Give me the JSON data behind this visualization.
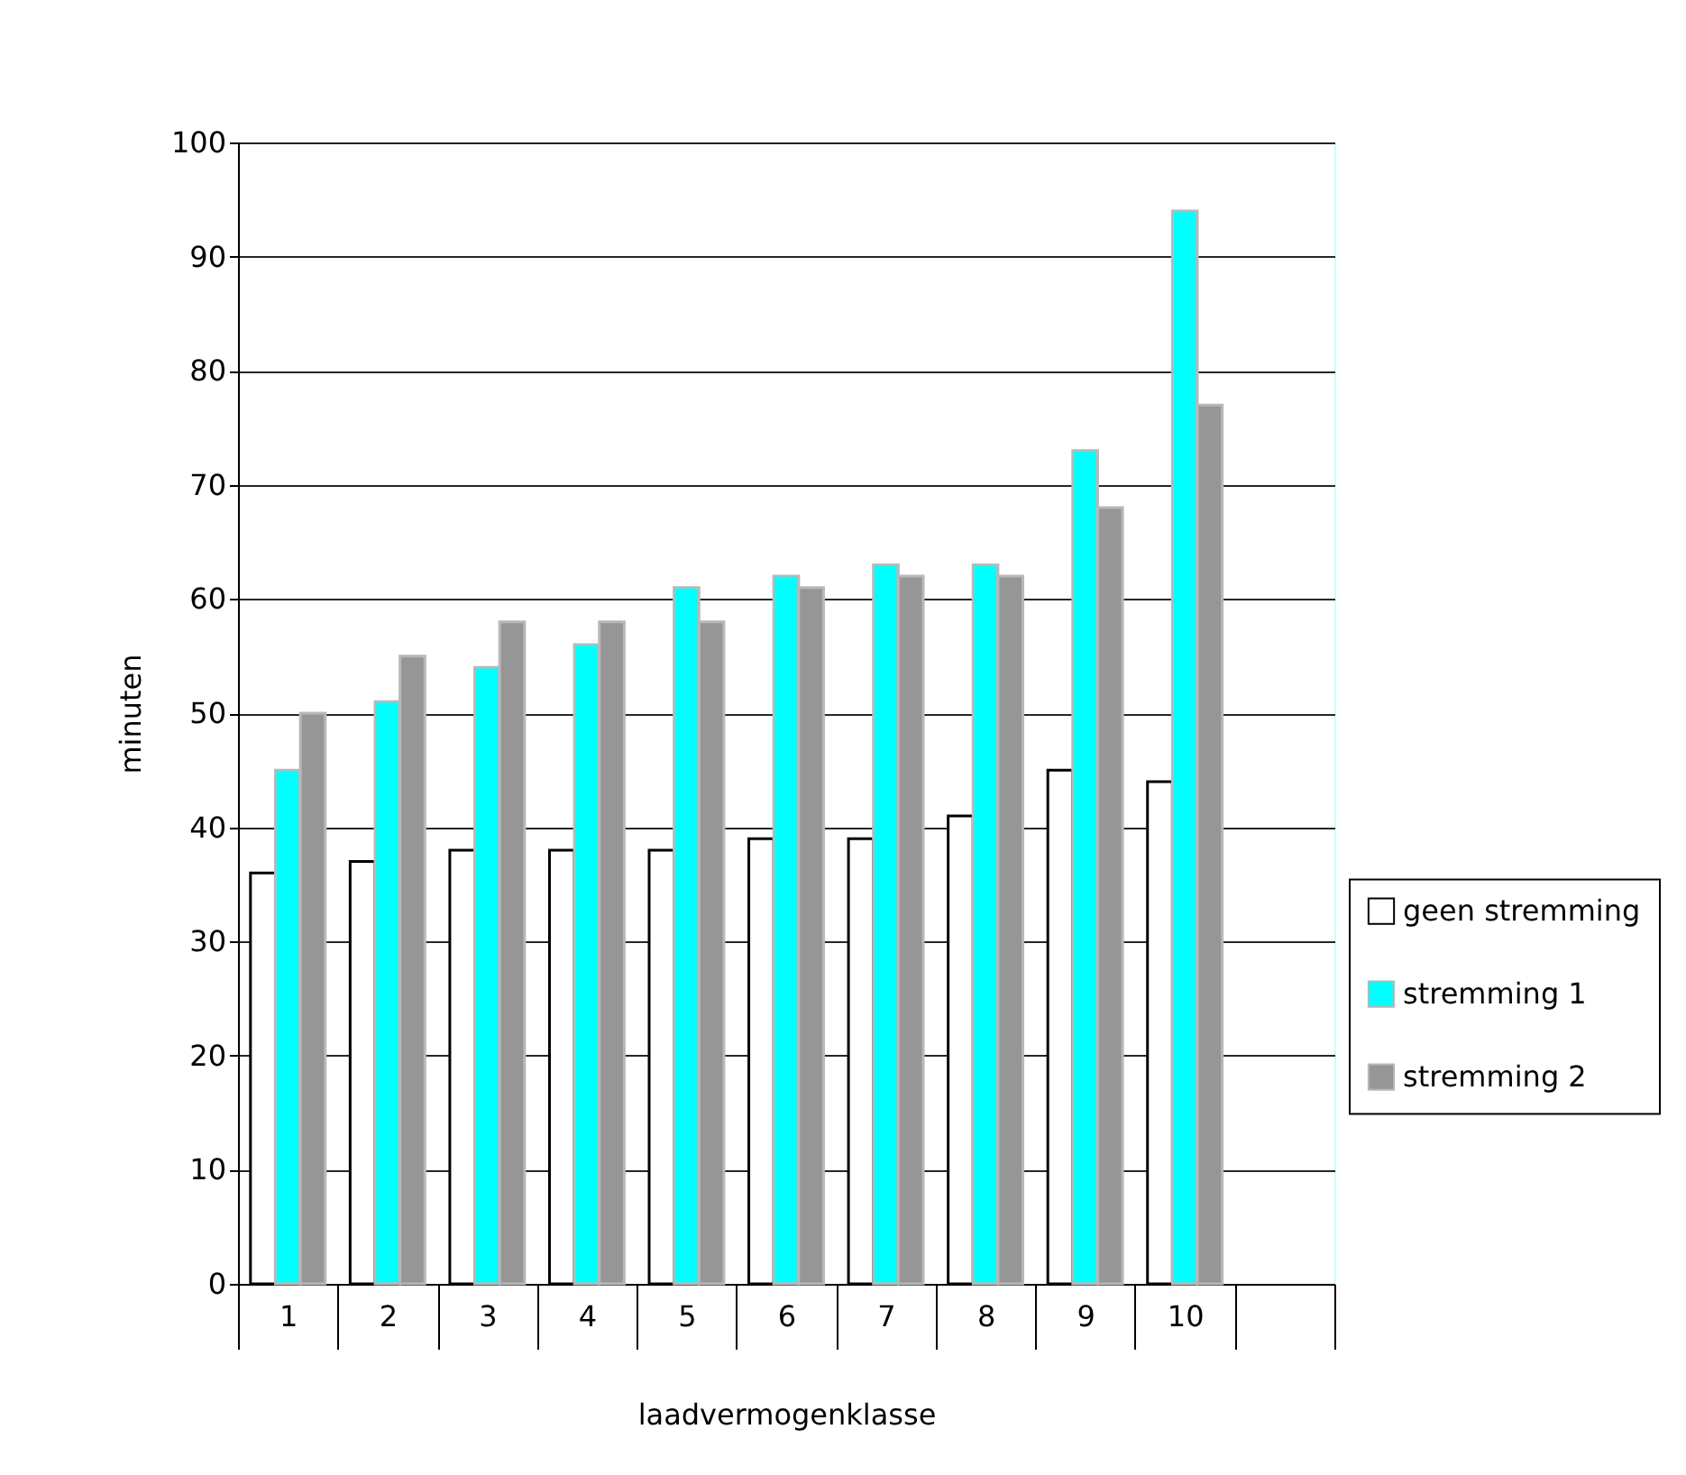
{
  "chart_data": {
    "type": "bar",
    "xlabel": "laadvermogenklasse",
    "ylabel": "minuten",
    "categories": [
      "1",
      "2",
      "3",
      "4",
      "5",
      "6",
      "7",
      "8",
      "9",
      "10",
      null
    ],
    "series": [
      {
        "name": "geen stremming",
        "color": "#ffffff",
        "values": [
          36,
          37,
          38,
          38,
          38,
          39,
          39,
          41,
          45,
          44,
          null
        ]
      },
      {
        "name": "stremming 1",
        "color": "#00ffff",
        "values": [
          45,
          51,
          54,
          56,
          61,
          62,
          63,
          63,
          73,
          94,
          null
        ]
      },
      {
        "name": "stremming 2",
        "color": "#969696",
        "values": [
          50,
          55,
          58,
          58,
          58,
          61,
          62,
          62,
          68,
          77,
          null
        ]
      }
    ],
    "ylim": [
      0,
      100
    ],
    "yticks": [
      0,
      10,
      20,
      30,
      40,
      50,
      60,
      70,
      80,
      90,
      100
    ],
    "grid": "y",
    "legend": "right"
  }
}
